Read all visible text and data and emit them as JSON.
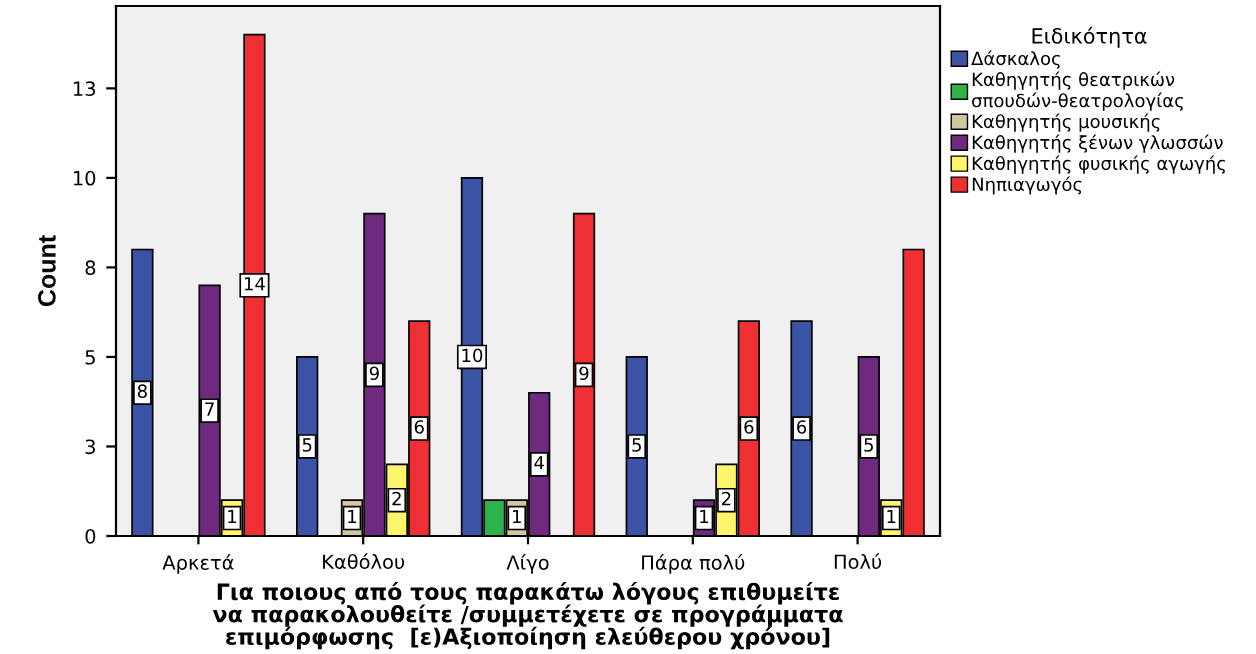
{
  "chart_data": {
    "type": "bar",
    "xlabel": "Για ποιους από τους παρακάτω λόγους επιθυμείτε\nνα παρακολουθείτε /συμμετέχετε σε προγράμματα\nεπιμόρφωσης  [ε)Αξιοποίηση ελεύθερου χρόνου]",
    "ylabel": "Count",
    "legend_title": "Ειδικότητα",
    "categories": [
      "Αρκετά",
      "Καθόλου",
      "Λίγο",
      "Πάρα πολύ",
      "Πολύ"
    ],
    "series": [
      {
        "name": "Δάσκαλος",
        "color": "#3a53a4",
        "values": [
          8,
          5,
          10,
          5,
          6
        ],
        "value_labels": [
          "8",
          "5",
          "10",
          "5",
          "6"
        ]
      },
      {
        "name": "Καθηγητής θεατρικών\nσπουδών-θεατρολογίας",
        "color": "#2db34a",
        "values": [
          null,
          null,
          1,
          null,
          null
        ],
        "value_labels": [
          null,
          null,
          null,
          null,
          null
        ]
      },
      {
        "name": "Καθηγητής μουσικής",
        "color": "#d0c89c",
        "values": [
          null,
          1,
          1,
          null,
          null
        ],
        "value_labels": [
          null,
          "1",
          "1",
          null,
          null
        ]
      },
      {
        "name": "Καθηγητής ξένων γλωσσών",
        "color": "#6f2a7f",
        "values": [
          7,
          9,
          4,
          1,
          5
        ],
        "value_labels": [
          "7",
          "9",
          "4",
          "1",
          "5"
        ]
      },
      {
        "name": "Καθηγητής φυσικής αγωγής",
        "color": "#fff56a",
        "values": [
          1,
          2,
          null,
          2,
          1
        ],
        "value_labels": [
          "1",
          "2",
          null,
          "2",
          "1"
        ]
      },
      {
        "name": "Νηπιαγωγός",
        "color": "#ee3035",
        "values": [
          14,
          6,
          9,
          6,
          8
        ],
        "value_labels": [
          "14",
          "6",
          "9",
          "6",
          null
        ]
      }
    ],
    "ylim": [
      0,
      14.8
    ],
    "yticks": [
      {
        "value": 0,
        "label": "0"
      },
      {
        "value": 2.5,
        "label": "3"
      },
      {
        "value": 5,
        "label": "5"
      },
      {
        "value": 7.5,
        "label": "8"
      },
      {
        "value": 10,
        "label": "10"
      },
      {
        "value": 12.5,
        "label": "13"
      }
    ],
    "grid": false,
    "legend": "top right"
  }
}
